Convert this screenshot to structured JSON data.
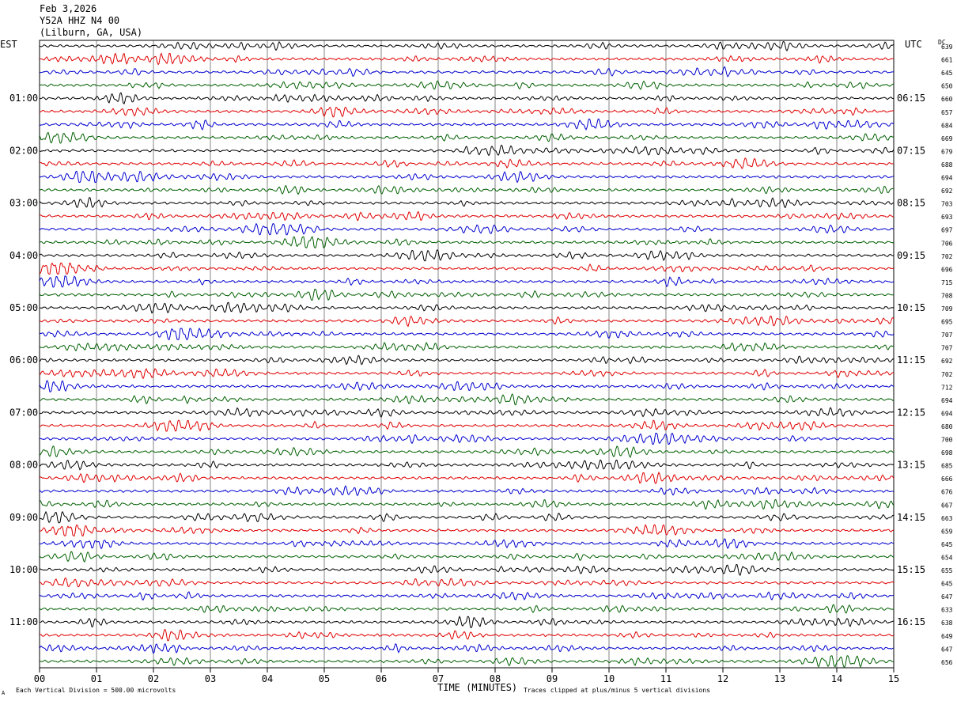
{
  "header": {
    "date": "Feb 3,2026",
    "station": "Y52A HHZ N4 00",
    "location": "(Lilburn, GA, USA)"
  },
  "left_tz": "EST",
  "right_tz": "UTC",
  "dc_label": "DC",
  "xlabel": "TIME (MINUTES)",
  "footer_left": "Each Vertical Division =  500.00 microvolts",
  "footer_right": "Traces clipped at plus/minus 5 vertical divisions",
  "footer_mark": "A",
  "colors": {
    "trace_cycle": [
      "#000000",
      "#e00000",
      "#0000d0",
      "#006000"
    ],
    "grid": "#000000"
  },
  "chart_data": {
    "type": "line",
    "description_kind": "helicorder",
    "x": [
      "00",
      "01",
      "02",
      "03",
      "04",
      "05",
      "06",
      "07",
      "08",
      "09",
      "10",
      "11",
      "12",
      "13",
      "14",
      "15"
    ],
    "xlim": [
      0,
      15
    ],
    "row_count": 48,
    "left_time_labels": [
      "01:00",
      "02:00",
      "03:00",
      "04:00",
      "05:00",
      "06:00",
      "07:00",
      "08:00",
      "09:00",
      "10:00",
      "11:00"
    ],
    "right_time_labels": [
      "06:15",
      "07:15",
      "08:15",
      "09:15",
      "10:15",
      "11:15",
      "12:15",
      "13:15",
      "14:15",
      "15:15",
      "16:15"
    ],
    "dc_offsets": [
      639,
      661,
      645,
      650,
      660,
      657,
      684,
      669,
      679,
      688,
      694,
      692,
      703,
      693,
      697,
      706,
      702,
      696,
      715,
      708,
      709,
      695,
      707,
      707,
      692,
      702,
      712,
      694,
      694,
      680,
      700,
      698,
      685,
      666,
      676,
      667,
      663,
      659,
      645,
      654,
      655,
      645,
      647,
      633,
      638,
      649,
      647,
      656
    ]
  }
}
